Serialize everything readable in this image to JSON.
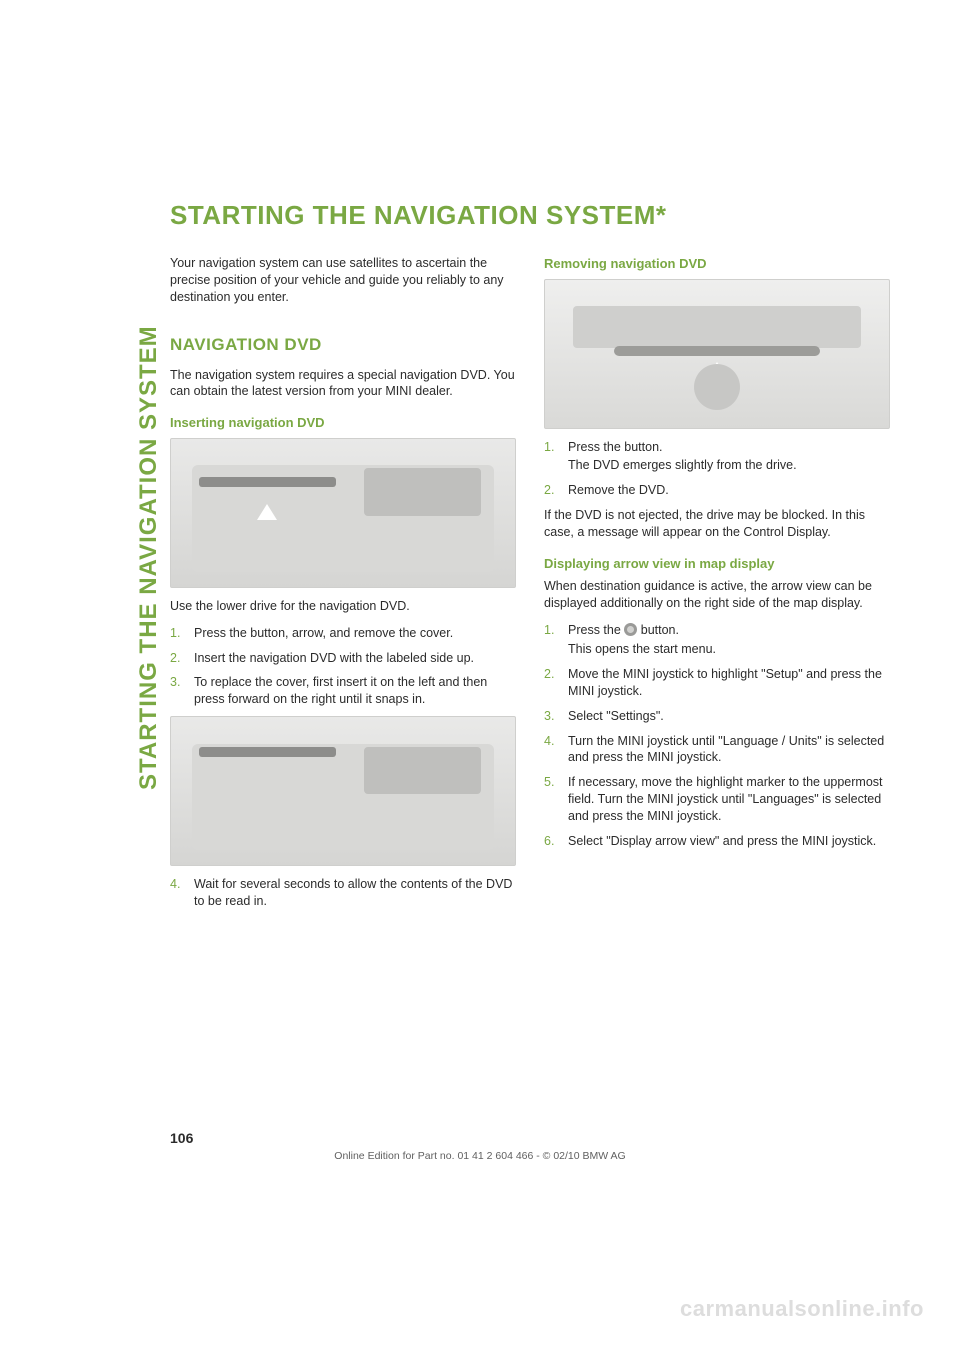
{
  "colors": {
    "accent": "#7aa843",
    "body_text": "#2b2b2b",
    "footer_text": "#606060",
    "watermark": "#dddddd",
    "figure_bg_top": "#e9e9e8",
    "figure_bg_bottom": "#d5d5d3"
  },
  "typography": {
    "title_fontsize": 26,
    "h2_fontsize": 17,
    "h3_fontsize": 13,
    "body_fontsize": 12.5,
    "vertical_label_fontsize": 24,
    "pagenum_fontsize": 14,
    "footer_fontsize": 10.5
  },
  "vertical_label": "STARTING THE NAVIGATION SYSTEM",
  "title": "STARTING THE NAVIGATION SYSTEM*",
  "intro": "Your navigation system can use satellites to ascertain the precise position of your vehicle and guide you reliably to any destination you enter.",
  "nav_dvd": {
    "heading": "NAVIGATION DVD",
    "para": "The navigation system requires a special navigation DVD. You can obtain the latest version from your MINI dealer."
  },
  "inserting": {
    "heading": "Inserting navigation DVD",
    "caption": "Use the lower drive for the navigation DVD.",
    "steps": [
      "Press the button, arrow, and remove the cover.",
      "Insert the navigation DVD with the labeled side up.",
      "To replace the cover, first insert it on the left and then press forward on the right until it snaps in.",
      "Wait for several seconds to allow the contents of the DVD to be read in."
    ]
  },
  "removing": {
    "heading": "Removing navigation DVD",
    "steps": [
      {
        "main": "Press the button.",
        "sub": "The DVD emerges slightly from the drive."
      },
      {
        "main": "Remove the DVD."
      }
    ],
    "note": "If the DVD is not ejected, the drive may be blocked. In this case, a message will appear on the Control Display."
  },
  "arrow_view": {
    "heading": "Displaying arrow view in map display",
    "intro": "When destination guidance is active, the arrow view can be displayed additionally on the right side of the map display.",
    "steps": [
      {
        "main_before": "Press the ",
        "main_after": " button.",
        "has_icon": true,
        "sub": "This opens the start menu."
      },
      {
        "main": "Move the MINI joystick to highlight \"Setup\" and press the MINI joystick."
      },
      {
        "main": "Select \"Settings\"."
      },
      {
        "main": "Turn the MINI joystick until \"Language / Units\" is selected and press the MINI joystick."
      },
      {
        "main": "If necessary, move the highlight marker to the uppermost field. Turn the MINI joystick until \"Languages\" is selected and press the MINI joystick."
      },
      {
        "main": "Select \"Display arrow view\" and press the MINI joystick."
      }
    ]
  },
  "page_number": "106",
  "footer": "Online Edition for Part no. 01 41 2 604 466 - © 02/10  BMW AG",
  "watermark": "carmanualsonline.info"
}
